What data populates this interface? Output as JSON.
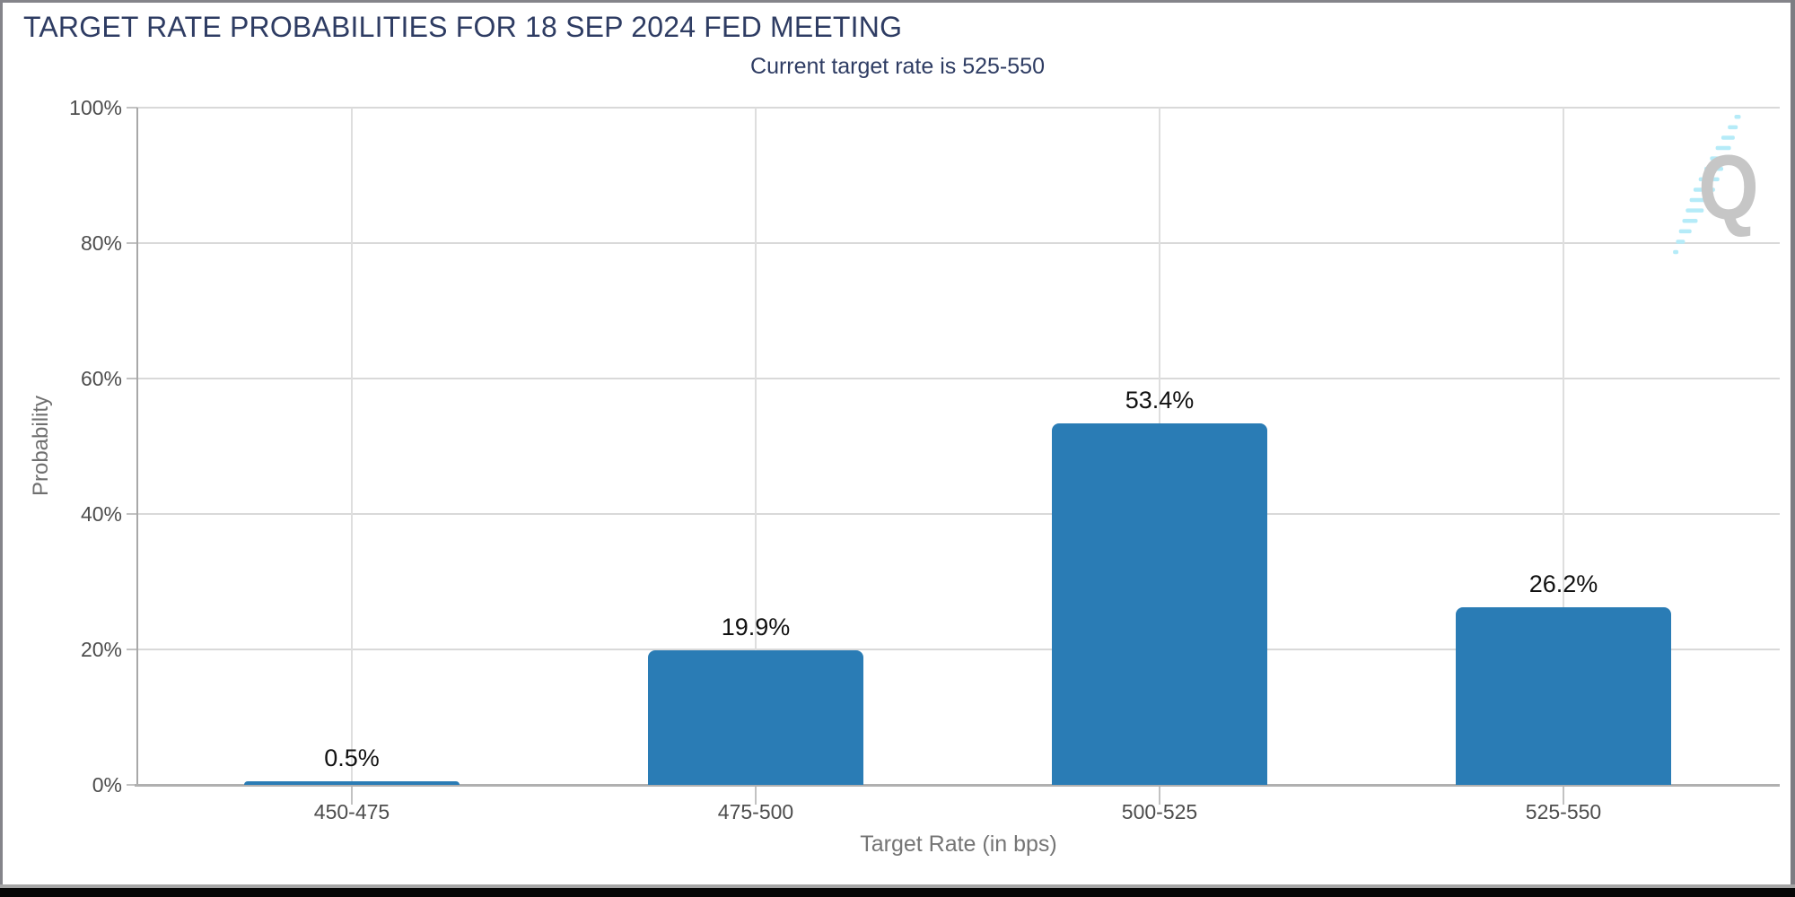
{
  "chart_data": {
    "type": "bar",
    "title": "TARGET RATE PROBABILITIES FOR 18 SEP 2024 FED MEETING",
    "subtitle": "Current target rate is 525-550",
    "categories": [
      "450-475",
      "475-500",
      "500-525",
      "525-550"
    ],
    "values": [
      0.5,
      19.9,
      53.4,
      26.2
    ],
    "value_labels": [
      "0.5%",
      "19.9%",
      "53.4%",
      "26.2%"
    ],
    "xlabel": "Target Rate (in bps)",
    "ylabel": "Probability",
    "ylim": [
      0,
      100
    ],
    "yticks": [
      {
        "value": 0,
        "label": "0%"
      },
      {
        "value": 20,
        "label": "20%"
      },
      {
        "value": 40,
        "label": "40%"
      },
      {
        "value": 60,
        "label": "60%"
      },
      {
        "value": 80,
        "label": "80%"
      },
      {
        "value": 100,
        "label": "100%"
      }
    ],
    "grid": true,
    "legend_position": "none",
    "bar_color": "#2a7cb5",
    "value_label_color": "#111111"
  },
  "watermark": {
    "letter": "Q",
    "letter_color": "#c6c6c6",
    "dash_color": "#b5ebf8"
  },
  "colors": {
    "title_text": "#2e3c63",
    "axis_tick_text": "#4d4d4d",
    "axis_title_text": "#6f6f6f",
    "gridline": "#d9d9d9",
    "bottom_bar": "#060606"
  }
}
